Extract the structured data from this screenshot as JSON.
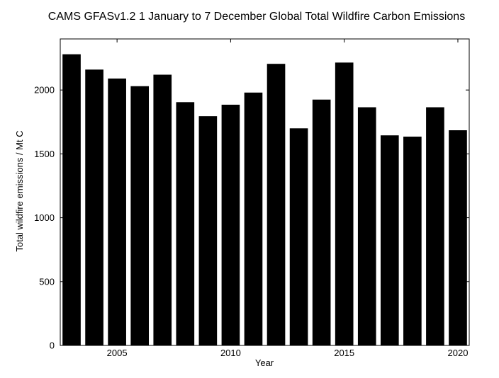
{
  "chart_data": {
    "type": "bar",
    "title": "CAMS GFASv1.2 1 January to 7 December Global Total Wildfire Carbon Emissions",
    "xlabel": "Year",
    "ylabel": "Total wildfire emissions / Mt C",
    "x": [
      2003,
      2004,
      2005,
      2006,
      2007,
      2008,
      2009,
      2010,
      2011,
      2012,
      2013,
      2014,
      2015,
      2016,
      2017,
      2018,
      2019,
      2020
    ],
    "values": [
      2280,
      2160,
      2090,
      2030,
      2120,
      1905,
      1795,
      1885,
      1980,
      2205,
      1700,
      1925,
      2215,
      1865,
      1645,
      1635,
      1865,
      1685
    ],
    "xlim": [
      2002.5,
      2020.5
    ],
    "ylim": [
      0,
      2400
    ],
    "x_ticks": [
      2005,
      2010,
      2015,
      2020
    ],
    "y_ticks": [
      0,
      500,
      1000,
      1500,
      2000
    ],
    "bar_color": "#000000",
    "grid": false,
    "legend": "none"
  }
}
